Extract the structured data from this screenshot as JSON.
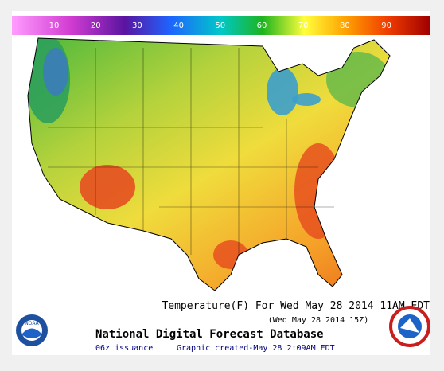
{
  "legend": {
    "ticks": [
      10,
      20,
      30,
      40,
      50,
      60,
      70,
      80,
      90
    ]
  },
  "caption": {
    "title": "Temperature(F) For Wed May 28 2014 11AM EDT",
    "valid_time": "(Wed May 28 2014 15Z)",
    "source": "National Digital Forecast Database",
    "issuance": "06z issuance",
    "created": "Graphic created-May 28  2:09AM EDT"
  },
  "logos": {
    "left": "NOAA"
  }
}
